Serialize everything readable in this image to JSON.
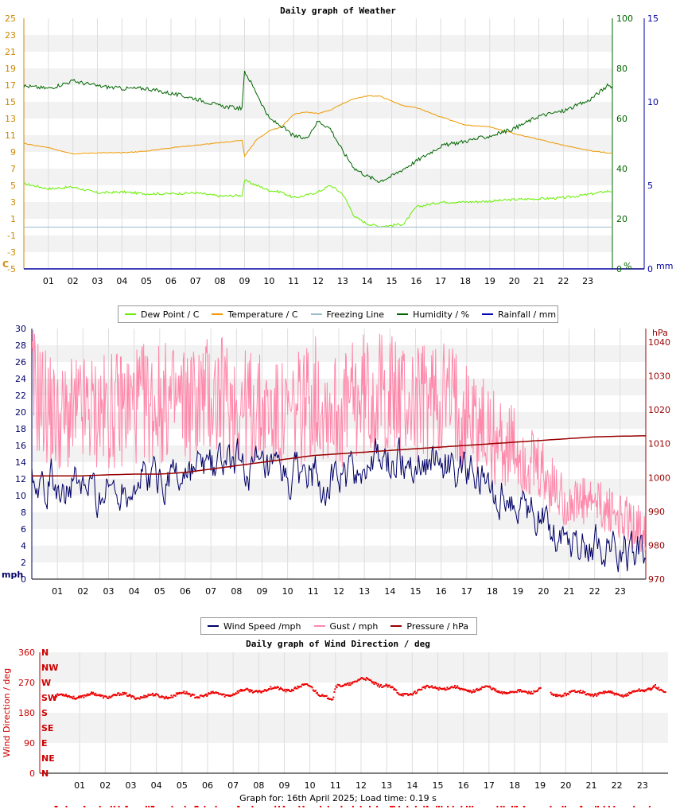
{
  "footer": "Graph for: 16th April 2025; Load time: 0.19 s",
  "hours": [
    "01",
    "02",
    "03",
    "04",
    "05",
    "06",
    "07",
    "08",
    "09",
    "10",
    "11",
    "12",
    "13",
    "14",
    "15",
    "16",
    "17",
    "18",
    "19",
    "20",
    "21",
    "22",
    "23"
  ],
  "chart_data": [
    {
      "type": "line",
      "title": "Daily graph of Weather",
      "ylabel": "C",
      "ylim": [
        -5,
        25
      ],
      "y_ticks": [
        "25",
        "23",
        "21",
        "19",
        "17",
        "15",
        "13",
        "11",
        "9",
        "7",
        "5",
        "3",
        "1",
        "-1",
        "-3",
        "-5"
      ],
      "secondary_axes": [
        {
          "label": "%",
          "ylim": [
            0,
            100
          ],
          "ticks": [
            "100",
            "80",
            "60",
            "40",
            "20",
            "0"
          ]
        },
        {
          "label": "mm",
          "ylim": [
            0,
            15
          ],
          "ticks": [
            "15",
            "10",
            "5",
            "0"
          ]
        }
      ],
      "x": [
        0,
        1,
        2,
        3,
        4,
        5,
        6,
        7,
        8,
        8.9,
        9,
        9.5,
        10,
        10.5,
        11,
        11.5,
        12,
        12.5,
        13,
        13.5,
        14,
        14.5,
        15,
        15.5,
        16,
        17,
        18,
        19,
        20,
        21,
        22,
        23,
        23.8
      ],
      "series": [
        {
          "name": "Dew Point / C",
          "color": "#66ee00",
          "values": [
            5.2,
            4.6,
            4.8,
            4.1,
            4.2,
            4.0,
            4.0,
            4.1,
            3.7,
            3.8,
            5.6,
            5.0,
            4.4,
            4.2,
            3.5,
            3.8,
            4.2,
            5.0,
            4.0,
            1.2,
            0.4,
            0.1,
            0.2,
            0.4,
            2.4,
            3.0,
            3.0,
            3.1,
            3.3,
            3.4,
            3.5,
            3.9,
            4.3
          ]
        },
        {
          "name": "Temperature / C",
          "color": "#ee9900",
          "values": [
            10.0,
            9.5,
            8.8,
            8.9,
            8.9,
            9.1,
            9.5,
            9.8,
            10.1,
            10.4,
            8.5,
            10.5,
            11.5,
            12.0,
            13.5,
            13.8,
            13.6,
            14.0,
            14.8,
            15.4,
            15.7,
            15.7,
            15.1,
            14.5,
            14.3,
            13.2,
            12.2,
            12.0,
            11.2,
            10.5,
            9.8,
            9.2,
            8.9
          ]
        },
        {
          "name": "Freezing Line",
          "color": "#99bbcc",
          "values": [
            0,
            0,
            0,
            0,
            0,
            0,
            0,
            0,
            0,
            0,
            0,
            0,
            0,
            0,
            0,
            0,
            0,
            0,
            0,
            0,
            0,
            0,
            0,
            0,
            0,
            0,
            0,
            0,
            0,
            0,
            0,
            0,
            0
          ]
        },
        {
          "name": "Humidity / %",
          "color": "#006600",
          "axis": "%",
          "values": [
            73,
            72,
            75,
            73,
            72,
            72,
            70,
            68,
            65,
            64,
            79,
            70,
            60,
            57,
            53,
            52,
            59,
            56,
            47,
            40,
            37,
            35,
            37,
            40,
            43,
            49,
            51,
            53,
            56,
            61,
            63,
            67,
            73
          ]
        },
        {
          "name": "Rainfall / mm",
          "color": "#0000bb",
          "axis": "mm",
          "values": [
            0,
            0,
            0,
            0,
            0,
            0,
            0,
            0,
            0,
            0,
            0,
            0,
            0,
            0,
            0,
            0,
            0,
            0,
            0,
            0,
            0,
            0,
            0,
            0,
            0,
            0,
            0,
            0,
            0,
            0,
            0,
            0,
            0
          ]
        }
      ]
    },
    {
      "type": "line",
      "title": "",
      "ylabel": "mph",
      "ylim": [
        0,
        30
      ],
      "y_ticks": [
        "30",
        "28",
        "26",
        "24",
        "22",
        "20",
        "18",
        "16",
        "14",
        "12",
        "10",
        "8",
        "6",
        "4",
        "2",
        "0"
      ],
      "secondary_axes": [
        {
          "label": "hPa",
          "ylim": [
            970,
            1044
          ],
          "ticks": [
            "1040",
            "1030",
            "1020",
            "1010",
            "1000",
            "990",
            "980",
            "970"
          ]
        }
      ],
      "x": [
        0,
        1,
        2,
        3,
        4,
        5,
        6,
        7,
        8,
        9,
        10,
        11,
        12,
        13,
        14,
        15,
        16,
        17,
        18,
        19,
        20,
        21,
        22,
        23,
        23.8
      ],
      "series": [
        {
          "name": "Wind Speed /mph",
          "color": "#000066",
          "values": [
            13,
            11.5,
            10.5,
            10.5,
            11.5,
            12.5,
            12.5,
            13.5,
            14,
            12,
            11.5,
            13,
            11.5,
            13.5,
            14,
            14,
            14.5,
            12.5,
            10,
            9,
            7.5,
            5,
            4.5,
            3.8,
            3.5
          ]
        },
        {
          "name": "Gust / mph",
          "color": "#ff88aa",
          "values": [
            23,
            19,
            20,
            20,
            21,
            21,
            21,
            22,
            21,
            20,
            19,
            22,
            20,
            22,
            22,
            21,
            22,
            20,
            17,
            15,
            12,
            9,
            9,
            7.5,
            6
          ]
        },
        {
          "name": "Pressure / hPa",
          "color": "#990000",
          "axis": "hPa",
          "values": [
            1000.5,
            1000.5,
            1000.5,
            1000.8,
            1001,
            1001,
            1001.5,
            1002.5,
            1003.5,
            1004.5,
            1005.5,
            1006.5,
            1007,
            1007.5,
            1008,
            1008.5,
            1009,
            1009.5,
            1010,
            1010.5,
            1011,
            1011.5,
            1012,
            1012.2,
            1012.3
          ]
        }
      ]
    },
    {
      "type": "scatter",
      "title": "Daily graph of Wind Direction / deg",
      "ylabel": "Wind Direction / deg",
      "ylim": [
        0,
        360
      ],
      "y_ticks": [
        "360",
        "270",
        "180",
        "90",
        "0"
      ],
      "compass_ticks": [
        "N",
        "NW",
        "W",
        "SW",
        "S",
        "SE",
        "E",
        "NE",
        "N"
      ],
      "x": [
        0,
        1,
        2,
        3,
        4,
        5,
        6,
        7,
        8,
        9,
        10,
        10.9,
        11,
        11.5,
        12,
        13,
        13.5,
        14,
        15,
        16,
        17,
        18,
        19,
        19.5,
        20,
        21,
        22,
        23,
        23.5,
        23.8
      ],
      "series": [
        {
          "name": "Wind Direction / deg",
          "color": "#ee0000",
          "values": [
            228,
            230,
            232,
            230,
            228,
            235,
            232,
            238,
            248,
            250,
            258,
            215,
            252,
            270,
            278,
            262,
            232,
            242,
            258,
            248,
            252,
            238,
            250,
            230,
            240,
            238,
            235,
            242,
            265,
            240
          ]
        }
      ]
    }
  ],
  "legend_weather": [
    {
      "label": "Dew Point / C",
      "color": "#66ee00"
    },
    {
      "label": "Temperature / C",
      "color": "#ee9900"
    },
    {
      "label": "Freezing Line",
      "color": "#99bbcc"
    },
    {
      "label": "Humidity / %",
      "color": "#006600"
    },
    {
      "label": "Rainfall / mm",
      "color": "#0000bb"
    }
  ],
  "legend_wind": [
    {
      "label": "Wind Speed /mph",
      "color": "#000066"
    },
    {
      "label": "Gust / mph",
      "color": "#ff88aa"
    },
    {
      "label": "Pressure / hPa",
      "color": "#990000"
    }
  ],
  "colors": {
    "grid_band": "#f2f2f2",
    "grid_line": "#dddddd",
    "axis_left": "#cc8800",
    "axis_green": "#006600",
    "axis_blue": "#0000aa",
    "axis_red": "#cc0000",
    "axis_pressure": "#990000"
  }
}
